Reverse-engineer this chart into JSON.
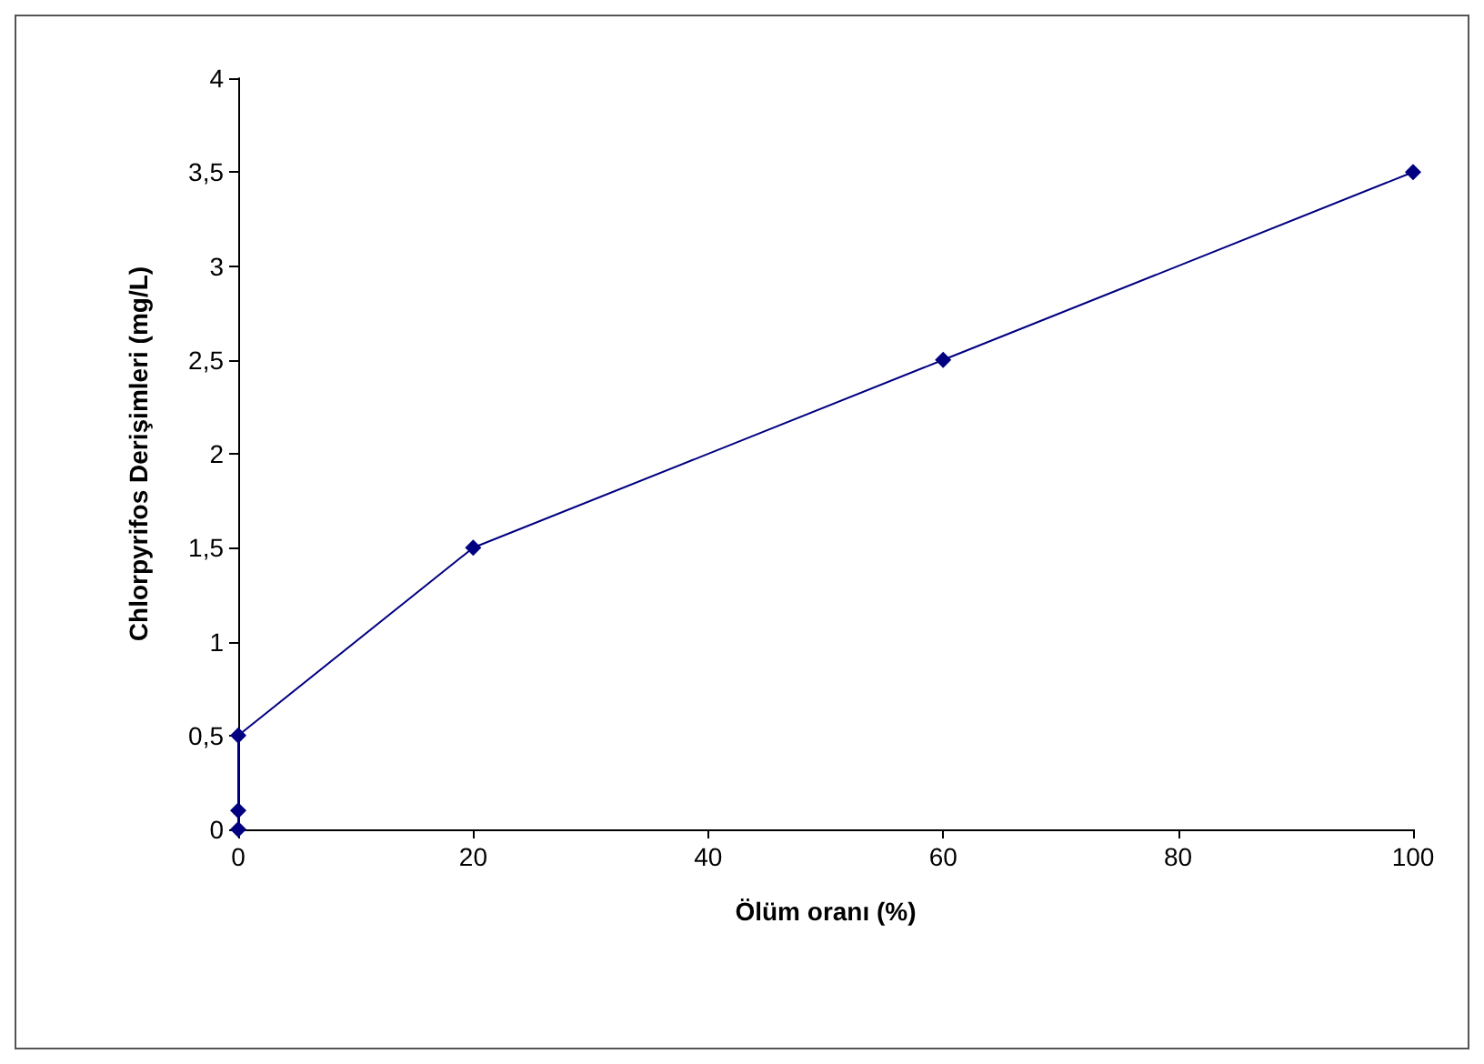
{
  "chart_data": {
    "type": "line",
    "xlabel": "Ölüm oranı (%)",
    "ylabel": "Chlorpyrifos Derişimleri (mg/L)",
    "x": [
      0,
      0,
      0,
      20,
      60,
      100
    ],
    "series": [
      {
        "color": "#000080",
        "values": [
          0,
          0.1,
          0.5,
          1.5,
          2.5,
          3.5
        ]
      }
    ],
    "xlim": [
      0,
      100
    ],
    "xticks": [
      0,
      20,
      40,
      60,
      80,
      100
    ],
    "ylim": [
      0,
      4
    ],
    "yticks": [
      0,
      {
        "value": 0.5,
        "label": "0,5"
      },
      1,
      {
        "value": 1.5,
        "label": "1,5"
      },
      2,
      {
        "value": 2.5,
        "label": "2,5"
      },
      3,
      {
        "value": 3.5,
        "label": "3,5"
      },
      4
    ],
    "grid": false,
    "marker": "diamond",
    "line_style": "solid"
  }
}
